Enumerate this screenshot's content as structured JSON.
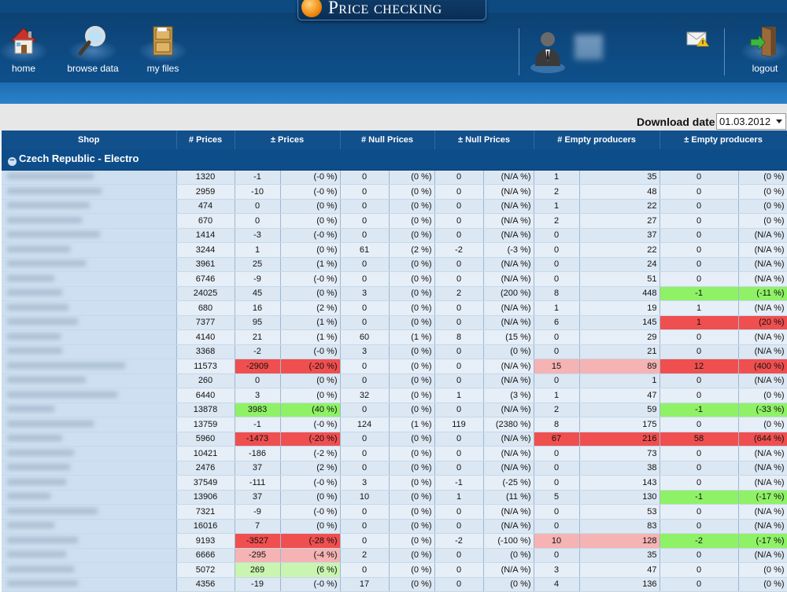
{
  "app": {
    "logo_text": "Price checking",
    "nav": [
      {
        "label": "home",
        "icon": "house-icon"
      },
      {
        "label": "browse data",
        "icon": "magnifier-icon"
      },
      {
        "label": "my files",
        "icon": "file-cabinet-icon"
      }
    ],
    "logout_label": "logout",
    "user_icon": "user-avatar-icon",
    "mail_icon": "mail-alert-icon"
  },
  "download": {
    "label": "Download date",
    "value": "01.03.2012"
  },
  "table": {
    "headers": [
      "Shop",
      "# Prices",
      "± Prices",
      "# Null Prices",
      "± Null Prices",
      "# Empty producers",
      "± Empty producers"
    ],
    "group_title": "Czech Republic - Electro",
    "rows": [
      {
        "p": "1320",
        "dp": "-1",
        "dpp": "(-0 %)",
        "n": "0",
        "np": "(0 %)",
        "dn": "0",
        "dnp": "(N/A %)",
        "e": "1",
        "e2": "35",
        "de": "0",
        "dep": "(0 %)"
      },
      {
        "p": "2959",
        "dp": "-10",
        "dpp": "(-0 %)",
        "n": "0",
        "np": "(0 %)",
        "dn": "0",
        "dnp": "(N/A %)",
        "e": "2",
        "e2": "48",
        "de": "0",
        "dep": "(0 %)"
      },
      {
        "p": "474",
        "dp": "0",
        "dpp": "(0 %)",
        "n": "0",
        "np": "(0 %)",
        "dn": "0",
        "dnp": "(N/A %)",
        "e": "1",
        "e2": "22",
        "de": "0",
        "dep": "(0 %)"
      },
      {
        "p": "670",
        "dp": "0",
        "dpp": "(0 %)",
        "n": "0",
        "np": "(0 %)",
        "dn": "0",
        "dnp": "(N/A %)",
        "e": "2",
        "e2": "27",
        "de": "0",
        "dep": "(0 %)"
      },
      {
        "p": "1414",
        "dp": "-3",
        "dpp": "(-0 %)",
        "n": "0",
        "np": "(0 %)",
        "dn": "0",
        "dnp": "(N/A %)",
        "e": "0",
        "e2": "37",
        "de": "0",
        "dep": "(N/A %)"
      },
      {
        "p": "3244",
        "dp": "1",
        "dpp": "(0 %)",
        "n": "61",
        "np": "(2 %)",
        "dn": "-2",
        "dnp": "(-3 %)",
        "e": "0",
        "e2": "22",
        "de": "0",
        "dep": "(N/A %)"
      },
      {
        "p": "3961",
        "dp": "25",
        "dpp": "(1 %)",
        "n": "0",
        "np": "(0 %)",
        "dn": "0",
        "dnp": "(N/A %)",
        "e": "0",
        "e2": "24",
        "de": "0",
        "dep": "(N/A %)"
      },
      {
        "p": "6746",
        "dp": "-9",
        "dpp": "(-0 %)",
        "n": "0",
        "np": "(0 %)",
        "dn": "0",
        "dnp": "(N/A %)",
        "e": "0",
        "e2": "51",
        "de": "0",
        "dep": "(N/A %)"
      },
      {
        "p": "24025",
        "dp": "45",
        "dpp": "(0 %)",
        "n": "3",
        "np": "(0 %)",
        "dn": "2",
        "dnp": "(200 %)",
        "e": "8",
        "e2": "448",
        "de": "-1",
        "dep": "(-11 %)",
        "hde": "green"
      },
      {
        "p": "680",
        "dp": "16",
        "dpp": "(2 %)",
        "n": "0",
        "np": "(0 %)",
        "dn": "0",
        "dnp": "(N/A %)",
        "e": "1",
        "e2": "19",
        "de": "1",
        "dep": "(N/A %)"
      },
      {
        "p": "7377",
        "dp": "95",
        "dpp": "(1 %)",
        "n": "0",
        "np": "(0 %)",
        "dn": "0",
        "dnp": "(N/A %)",
        "e": "6",
        "e2": "145",
        "de": "1",
        "dep": "(20 %)",
        "hde": "red"
      },
      {
        "p": "4140",
        "dp": "21",
        "dpp": "(1 %)",
        "n": "60",
        "np": "(1 %)",
        "dn": "8",
        "dnp": "(15 %)",
        "e": "0",
        "e2": "29",
        "de": "0",
        "dep": "(N/A %)"
      },
      {
        "p": "3368",
        "dp": "-2",
        "dpp": "(-0 %)",
        "n": "3",
        "np": "(0 %)",
        "dn": "0",
        "dnp": "(0 %)",
        "e": "0",
        "e2": "21",
        "de": "0",
        "dep": "(N/A %)"
      },
      {
        "p": "11573",
        "dp": "-2909",
        "dpp": "(-20 %)",
        "n": "0",
        "np": "(0 %)",
        "dn": "0",
        "dnp": "(N/A %)",
        "e": "15",
        "e2": "89",
        "de": "12",
        "dep": "(400 %)",
        "hdp": "red",
        "he": "pink",
        "hde": "red"
      },
      {
        "p": "260",
        "dp": "0",
        "dpp": "(0 %)",
        "n": "0",
        "np": "(0 %)",
        "dn": "0",
        "dnp": "(N/A %)",
        "e": "0",
        "e2": "1",
        "de": "0",
        "dep": "(N/A %)"
      },
      {
        "p": "6440",
        "dp": "3",
        "dpp": "(0 %)",
        "n": "32",
        "np": "(0 %)",
        "dn": "1",
        "dnp": "(3 %)",
        "e": "1",
        "e2": "47",
        "de": "0",
        "dep": "(0 %)"
      },
      {
        "p": "13878",
        "dp": "3983",
        "dpp": "(40 %)",
        "n": "0",
        "np": "(0 %)",
        "dn": "0",
        "dnp": "(N/A %)",
        "e": "2",
        "e2": "59",
        "de": "-1",
        "dep": "(-33 %)",
        "hdp": "green",
        "hde": "green"
      },
      {
        "p": "13759",
        "dp": "-1",
        "dpp": "(-0 %)",
        "n": "124",
        "np": "(1 %)",
        "dn": "119",
        "dnp": "(2380 %)",
        "e": "8",
        "e2": "175",
        "de": "0",
        "dep": "(0 %)"
      },
      {
        "p": "5960",
        "dp": "-1473",
        "dpp": "(-20 %)",
        "n": "0",
        "np": "(0 %)",
        "dn": "0",
        "dnp": "(N/A %)",
        "e": "67",
        "e2": "216",
        "de": "58",
        "dep": "(644 %)",
        "hdp": "red",
        "he": "red",
        "hde": "red"
      },
      {
        "p": "10421",
        "dp": "-186",
        "dpp": "(-2 %)",
        "n": "0",
        "np": "(0 %)",
        "dn": "0",
        "dnp": "(N/A %)",
        "e": "0",
        "e2": "73",
        "de": "0",
        "dep": "(N/A %)"
      },
      {
        "p": "2476",
        "dp": "37",
        "dpp": "(2 %)",
        "n": "0",
        "np": "(0 %)",
        "dn": "0",
        "dnp": "(N/A %)",
        "e": "0",
        "e2": "38",
        "de": "0",
        "dep": "(N/A %)"
      },
      {
        "p": "37549",
        "dp": "-111",
        "dpp": "(-0 %)",
        "n": "3",
        "np": "(0 %)",
        "dn": "-1",
        "dnp": "(-25 %)",
        "e": "0",
        "e2": "143",
        "de": "0",
        "dep": "(N/A %)"
      },
      {
        "p": "13906",
        "dp": "37",
        "dpp": "(0 %)",
        "n": "10",
        "np": "(0 %)",
        "dn": "1",
        "dnp": "(11 %)",
        "e": "5",
        "e2": "130",
        "de": "-1",
        "dep": "(-17 %)",
        "hde": "green"
      },
      {
        "p": "7321",
        "dp": "-9",
        "dpp": "(-0 %)",
        "n": "0",
        "np": "(0 %)",
        "dn": "0",
        "dnp": "(N/A %)",
        "e": "0",
        "e2": "53",
        "de": "0",
        "dep": "(N/A %)"
      },
      {
        "p": "16016",
        "dp": "7",
        "dpp": "(0 %)",
        "n": "0",
        "np": "(0 %)",
        "dn": "0",
        "dnp": "(N/A %)",
        "e": "0",
        "e2": "83",
        "de": "0",
        "dep": "(N/A %)"
      },
      {
        "p": "9193",
        "dp": "-3527",
        "dpp": "(-28 %)",
        "n": "0",
        "np": "(0 %)",
        "dn": "-2",
        "dnp": "(-100 %)",
        "e": "10",
        "e2": "128",
        "de": "-2",
        "dep": "(-17 %)",
        "hdp": "red",
        "he": "pink",
        "hde": "green"
      },
      {
        "p": "6666",
        "dp": "-295",
        "dpp": "(-4 %)",
        "n": "2",
        "np": "(0 %)",
        "dn": "0",
        "dnp": "(0 %)",
        "e": "0",
        "e2": "35",
        "de": "0",
        "dep": "(N/A %)",
        "hdp": "pink"
      },
      {
        "p": "5072",
        "dp": "269",
        "dpp": "(6 %)",
        "n": "0",
        "np": "(0 %)",
        "dn": "0",
        "dnp": "(N/A %)",
        "e": "3",
        "e2": "47",
        "de": "0",
        "dep": "(0 %)",
        "hdp": "lgreen"
      },
      {
        "p": "4356",
        "dp": "-19",
        "dpp": "(-0 %)",
        "n": "17",
        "np": "(0 %)",
        "dn": "0",
        "dnp": "(0 %)",
        "e": "4",
        "e2": "136",
        "de": "0",
        "dep": "(0 %)"
      }
    ]
  }
}
